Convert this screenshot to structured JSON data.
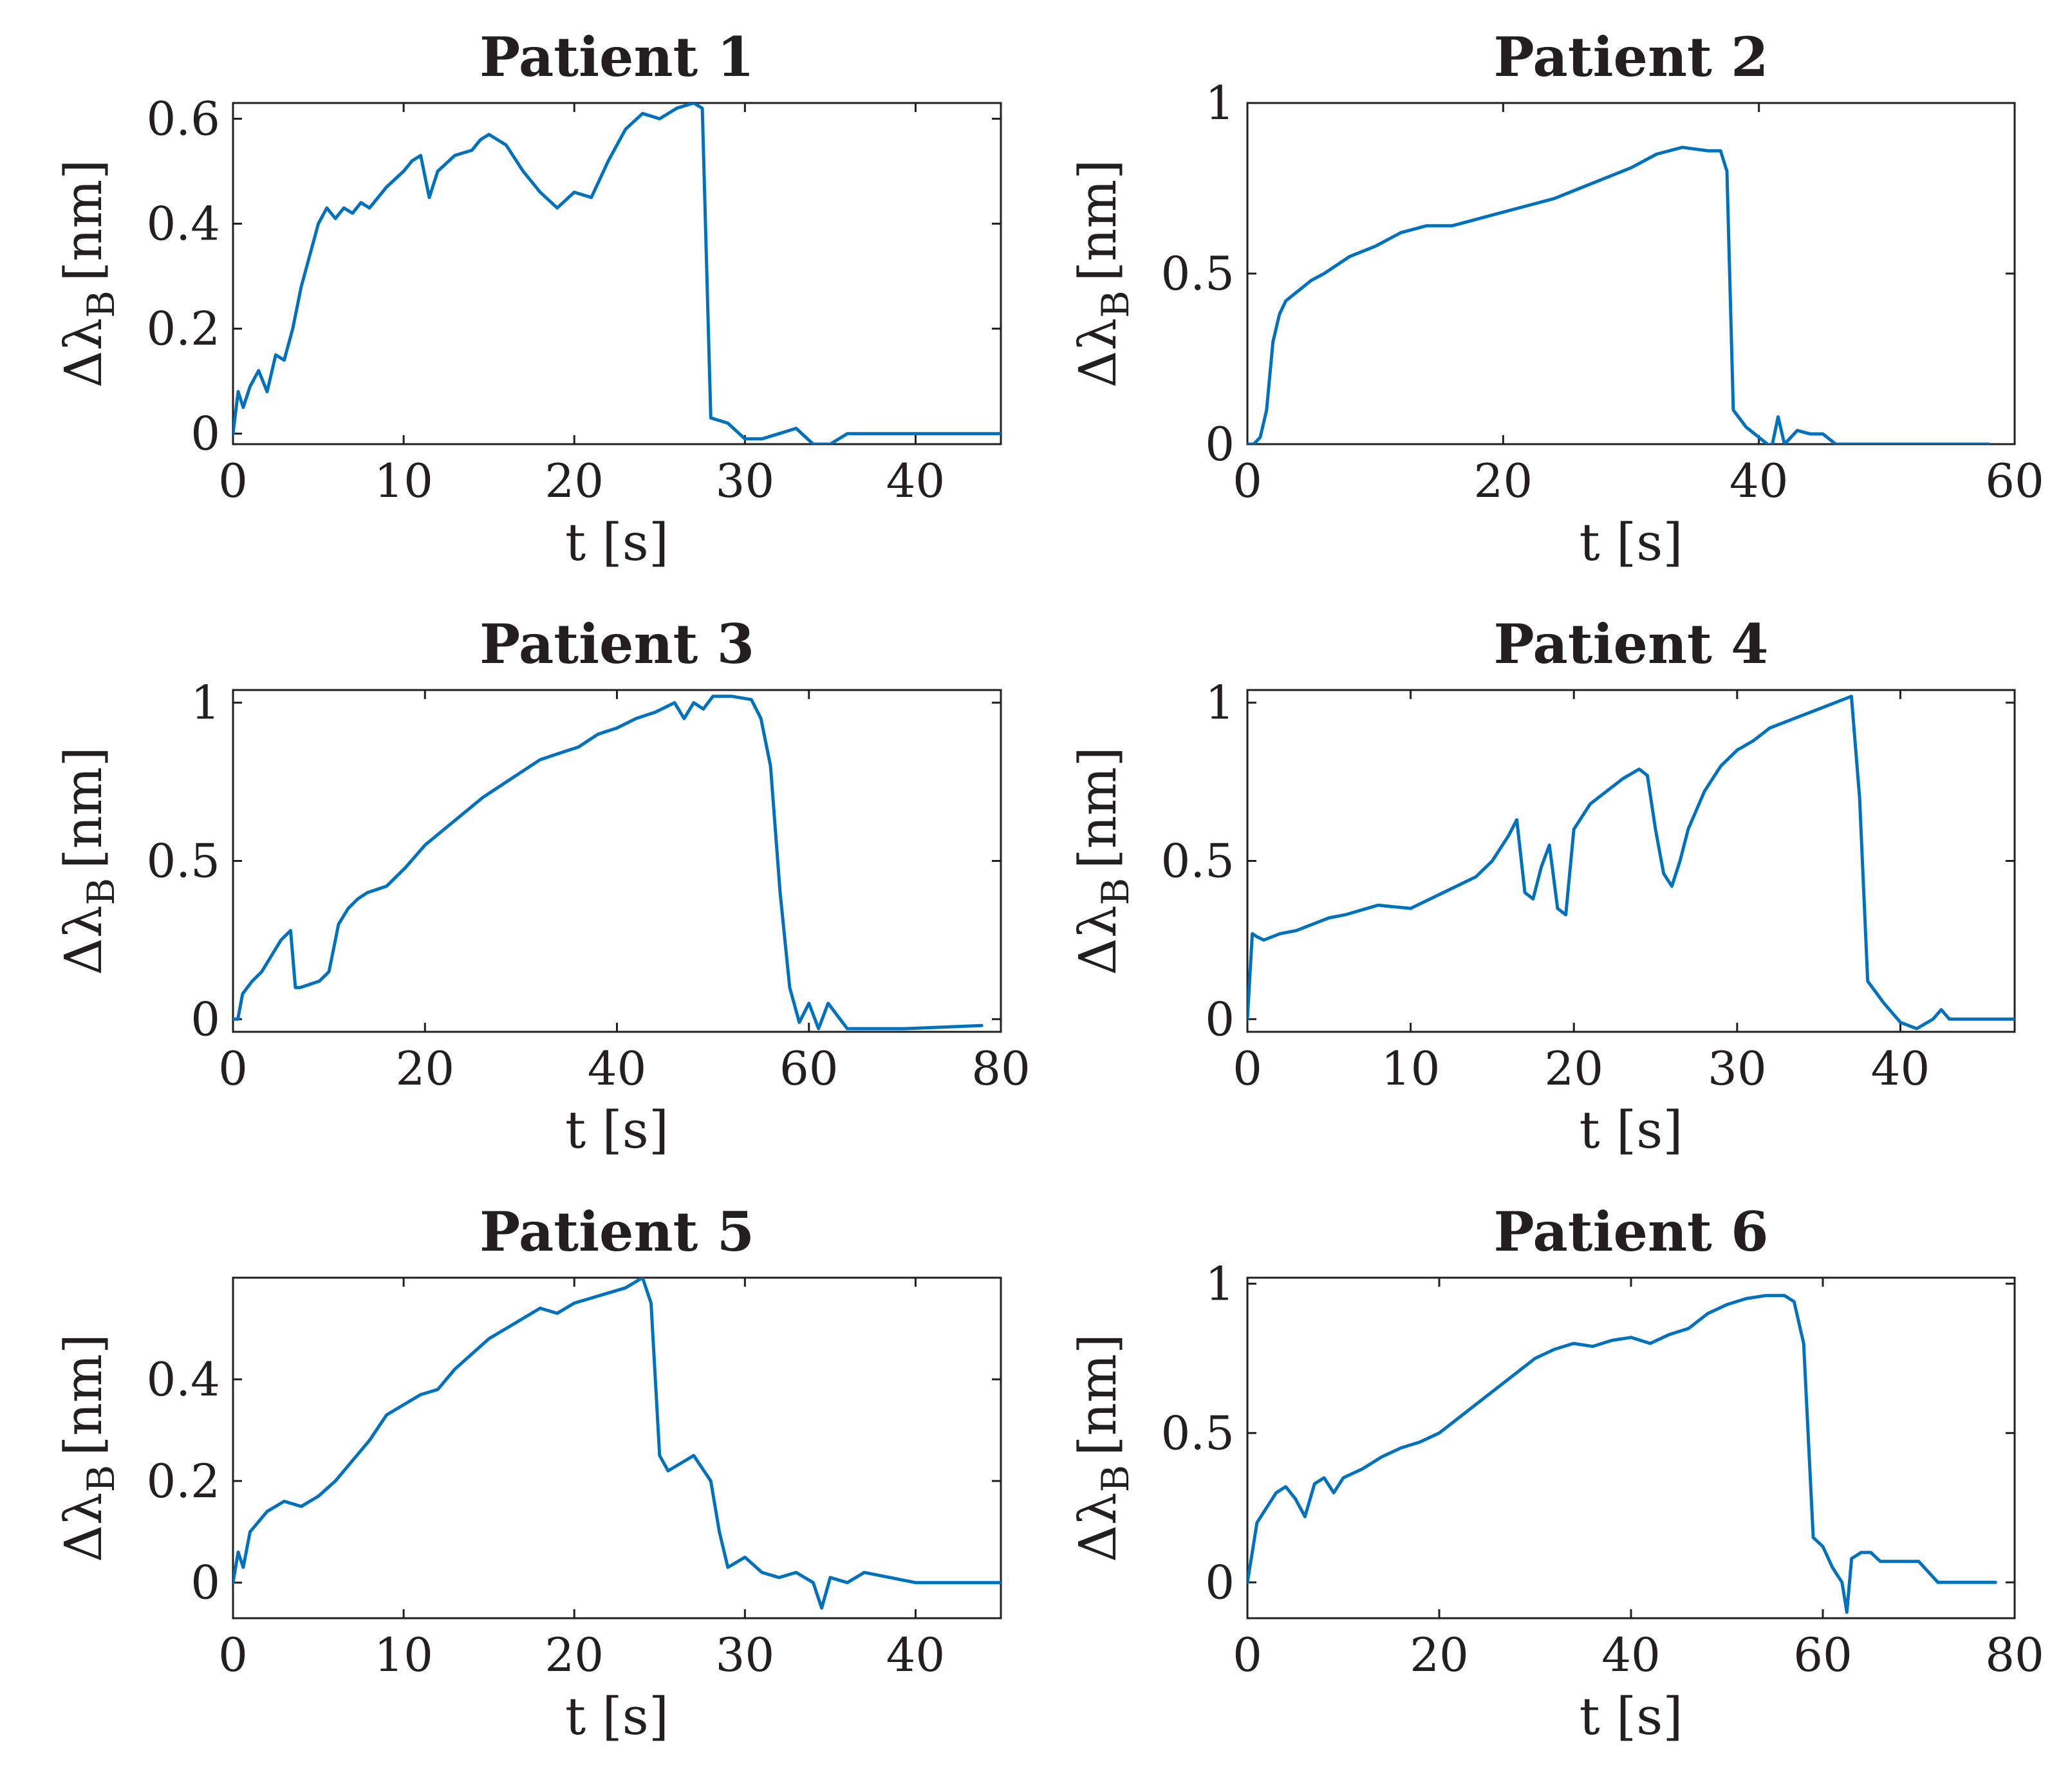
{
  "line_color": "#0072bd",
  "axis_color": "#231f20",
  "chart_data": [
    {
      "type": "line",
      "title": "Patient 1",
      "xlabel": "t [s]",
      "ylabel": "Δλ",
      "ylabel_subscript": "B",
      "ylabel_unit": "[nm]",
      "xlim": [
        0,
        45
      ],
      "ylim": [
        -0.02,
        0.63
      ],
      "xticks": [
        0,
        10,
        20,
        30,
        40
      ],
      "xtick_labels": [
        "0",
        "10",
        "20",
        "30",
        "40"
      ],
      "yticks": [
        0,
        0.2,
        0.4,
        0.6
      ],
      "ytick_labels": [
        "0",
        "0.2",
        "0.4",
        "0.6"
      ],
      "series": [
        {
          "name": "Δλ_B",
          "x": [
            0,
            0.3,
            0.6,
            1,
            1.5,
            2,
            2.5,
            3,
            3.5,
            4,
            4.5,
            5,
            5.5,
            6,
            6.5,
            7,
            7.5,
            8,
            9,
            10,
            10.5,
            11,
            11.5,
            12,
            13,
            14,
            14.5,
            15,
            16,
            17,
            18,
            19,
            20,
            21,
            22,
            23,
            24,
            25,
            26,
            27,
            27.5,
            28,
            29,
            30,
            31,
            32,
            33,
            34,
            35,
            36,
            38,
            40,
            45
          ],
          "y": [
            0,
            0.08,
            0.05,
            0.09,
            0.12,
            0.08,
            0.15,
            0.14,
            0.2,
            0.28,
            0.34,
            0.4,
            0.43,
            0.41,
            0.43,
            0.42,
            0.44,
            0.43,
            0.47,
            0.5,
            0.52,
            0.53,
            0.45,
            0.5,
            0.53,
            0.54,
            0.56,
            0.57,
            0.55,
            0.5,
            0.46,
            0.43,
            0.46,
            0.45,
            0.52,
            0.58,
            0.61,
            0.6,
            0.62,
            0.63,
            0.62,
            0.03,
            0.02,
            -0.01,
            -0.01,
            0.0,
            0.01,
            -0.02,
            -0.02,
            0.0,
            0.0,
            0.0,
            0.0
          ]
        }
      ]
    },
    {
      "type": "line",
      "title": "Patient 2",
      "xlabel": "t [s]",
      "ylabel": "Δλ",
      "ylabel_subscript": "B",
      "ylabel_unit": "[nm]",
      "xlim": [
        0,
        60
      ],
      "ylim": [
        0,
        1
      ],
      "xticks": [
        0,
        20,
        40,
        60
      ],
      "xtick_labels": [
        "0",
        "20",
        "40",
        "60"
      ],
      "yticks": [
        0,
        0.5,
        1
      ],
      "ytick_labels": [
        "0",
        "0.5",
        "1"
      ],
      "series": [
        {
          "name": "Δλ_B",
          "x": [
            0,
            0.5,
            1,
            1.5,
            2,
            2.5,
            3,
            4,
            5,
            6,
            8,
            10,
            12,
            14,
            16,
            18,
            20,
            22,
            24,
            26,
            28,
            30,
            32,
            34,
            36,
            37,
            37.5,
            38,
            39,
            40,
            41,
            41.5,
            42,
            43,
            44,
            45,
            46,
            47,
            50,
            55,
            58
          ],
          "y": [
            0,
            0.0,
            0.02,
            0.1,
            0.3,
            0.38,
            0.42,
            0.45,
            0.48,
            0.5,
            0.55,
            0.58,
            0.62,
            0.64,
            0.64,
            0.66,
            0.68,
            0.7,
            0.72,
            0.75,
            0.78,
            0.81,
            0.85,
            0.87,
            0.86,
            0.86,
            0.8,
            0.1,
            0.05,
            0.02,
            -0.01,
            0.08,
            0.0,
            0.04,
            0.03,
            0.03,
            0.0,
            0.0,
            0.0,
            0.0,
            0.0
          ]
        }
      ]
    },
    {
      "type": "line",
      "title": "Patient 3",
      "xlabel": "t [s]",
      "ylabel": "Δλ",
      "ylabel_subscript": "B",
      "ylabel_unit": "[nm]",
      "xlim": [
        0,
        80
      ],
      "ylim": [
        -0.04,
        1.04
      ],
      "xticks": [
        0,
        20,
        40,
        60,
        80
      ],
      "xtick_labels": [
        "0",
        "20",
        "40",
        "60",
        "80"
      ],
      "yticks": [
        0,
        0.5,
        1
      ],
      "ytick_labels": [
        "0",
        "0.5",
        "1"
      ],
      "series": [
        {
          "name": "Δλ_B",
          "x": [
            0,
            0.5,
            1,
            2,
            3,
            4,
            5,
            6,
            6.5,
            7,
            8,
            9,
            10,
            11,
            12,
            13,
            14,
            16,
            18,
            20,
            22,
            24,
            26,
            28,
            30,
            32,
            34,
            36,
            38,
            40,
            42,
            44,
            46,
            47,
            48,
            49,
            50,
            52,
            54,
            55,
            56,
            57,
            58,
            59,
            60,
            61,
            62,
            64,
            70,
            78
          ],
          "y": [
            0,
            0.0,
            0.08,
            0.12,
            0.15,
            0.2,
            0.25,
            0.28,
            0.1,
            0.1,
            0.11,
            0.12,
            0.15,
            0.3,
            0.35,
            0.38,
            0.4,
            0.42,
            0.48,
            0.55,
            0.6,
            0.65,
            0.7,
            0.74,
            0.78,
            0.82,
            0.84,
            0.86,
            0.9,
            0.92,
            0.95,
            0.97,
            1.0,
            0.95,
            1.0,
            0.98,
            1.02,
            1.02,
            1.01,
            0.95,
            0.8,
            0.4,
            0.1,
            -0.01,
            0.05,
            -0.03,
            0.05,
            -0.03,
            -0.03,
            -0.02
          ]
        }
      ]
    },
    {
      "type": "line",
      "title": "Patient 4",
      "xlabel": "t [s]",
      "ylabel": "Δλ",
      "ylabel_subscript": "B",
      "ylabel_unit": "[nm]",
      "xlim": [
        0,
        47
      ],
      "ylim": [
        -0.04,
        1.04
      ],
      "xticks": [
        0,
        10,
        20,
        30,
        40
      ],
      "xtick_labels": [
        "0",
        "10",
        "20",
        "30",
        "40"
      ],
      "yticks": [
        0,
        0.5,
        1
      ],
      "ytick_labels": [
        "0",
        "0.5",
        "1"
      ],
      "series": [
        {
          "name": "Δλ_B",
          "x": [
            0,
            0.3,
            0.6,
            1,
            2,
            3,
            4,
            5,
            6,
            8,
            10,
            12,
            14,
            15,
            16,
            16.5,
            17,
            17.5,
            18,
            18.5,
            19,
            19.5,
            20,
            21,
            22,
            23,
            24,
            24.5,
            25,
            25.5,
            26,
            26.5,
            27,
            28,
            29,
            30,
            31,
            32,
            33,
            34,
            35,
            36,
            37,
            37.5,
            38,
            39,
            40,
            41,
            42,
            42.5,
            43,
            44,
            47
          ],
          "y": [
            0,
            0.27,
            0.26,
            0.25,
            0.27,
            0.28,
            0.3,
            0.32,
            0.33,
            0.36,
            0.35,
            0.4,
            0.45,
            0.5,
            0.58,
            0.63,
            0.4,
            0.38,
            0.48,
            0.55,
            0.35,
            0.33,
            0.6,
            0.68,
            0.72,
            0.76,
            0.79,
            0.77,
            0.6,
            0.46,
            0.42,
            0.5,
            0.6,
            0.72,
            0.8,
            0.85,
            0.88,
            0.92,
            0.94,
            0.96,
            0.98,
            1.0,
            1.02,
            0.7,
            0.12,
            0.05,
            -0.01,
            -0.03,
            0.0,
            0.03,
            0.0,
            0.0,
            0.0
          ]
        }
      ]
    },
    {
      "type": "line",
      "title": "Patient 5",
      "xlabel": "t [s]",
      "ylabel": "Δλ",
      "ylabel_subscript": "B",
      "ylabel_unit": "[nm]",
      "xlim": [
        0,
        45
      ],
      "ylim": [
        -0.07,
        0.6
      ],
      "xticks": [
        0,
        10,
        20,
        30,
        40
      ],
      "xtick_labels": [
        "0",
        "10",
        "20",
        "30",
        "40"
      ],
      "yticks": [
        0,
        0.2,
        0.4
      ],
      "ytick_labels": [
        "0",
        "0.2",
        "0.4"
      ],
      "series": [
        {
          "name": "Δλ_B",
          "x": [
            0,
            0.3,
            0.6,
            1,
            1.5,
            2,
            3,
            4,
            5,
            6,
            7,
            8,
            9,
            10,
            11,
            12,
            13,
            14,
            15,
            16,
            17,
            18,
            19,
            20,
            21,
            22,
            23,
            24,
            24.5,
            25,
            25.5,
            26,
            27,
            28,
            28.5,
            29,
            30,
            31,
            32,
            33,
            34,
            34.5,
            35,
            36,
            37,
            40,
            45
          ],
          "y": [
            0,
            0.06,
            0.03,
            0.1,
            0.12,
            0.14,
            0.16,
            0.15,
            0.17,
            0.2,
            0.24,
            0.28,
            0.33,
            0.35,
            0.37,
            0.38,
            0.42,
            0.45,
            0.48,
            0.5,
            0.52,
            0.54,
            0.53,
            0.55,
            0.56,
            0.57,
            0.58,
            0.6,
            0.55,
            0.25,
            0.22,
            0.23,
            0.25,
            0.2,
            0.1,
            0.03,
            0.05,
            0.02,
            0.01,
            0.02,
            0.0,
            -0.05,
            0.01,
            0.0,
            0.02,
            0.0,
            0.0
          ]
        }
      ]
    },
    {
      "type": "line",
      "title": "Patient 6",
      "xlabel": "t [s]",
      "ylabel": "Δλ",
      "ylabel_subscript": "B",
      "ylabel_unit": "[nm]",
      "xlim": [
        0,
        80
      ],
      "ylim": [
        -0.12,
        1.02
      ],
      "xticks": [
        0,
        20,
        40,
        60,
        80
      ],
      "xtick_labels": [
        "0",
        "20",
        "40",
        "60",
        "80"
      ],
      "yticks": [
        0,
        0.5,
        1
      ],
      "ytick_labels": [
        "0",
        "0.5",
        "1"
      ],
      "series": [
        {
          "name": "Δλ_B",
          "x": [
            0,
            0.5,
            1,
            2,
            3,
            4,
            5,
            6,
            7,
            8,
            9,
            10,
            12,
            14,
            16,
            18,
            20,
            22,
            24,
            26,
            28,
            30,
            32,
            34,
            36,
            38,
            40,
            42,
            44,
            46,
            48,
            50,
            52,
            54,
            56,
            57,
            58,
            59,
            60,
            61,
            62,
            62.5,
            63,
            64,
            65,
            66,
            68,
            70,
            72,
            78
          ],
          "y": [
            0,
            0.1,
            0.2,
            0.25,
            0.3,
            0.32,
            0.28,
            0.22,
            0.33,
            0.35,
            0.3,
            0.35,
            0.38,
            0.42,
            0.45,
            0.47,
            0.5,
            0.55,
            0.6,
            0.65,
            0.7,
            0.75,
            0.78,
            0.8,
            0.79,
            0.81,
            0.82,
            0.8,
            0.83,
            0.85,
            0.9,
            0.93,
            0.95,
            0.96,
            0.96,
            0.94,
            0.8,
            0.15,
            0.12,
            0.05,
            0.0,
            -0.1,
            0.08,
            0.1,
            0.1,
            0.07,
            0.07,
            0.07,
            0.0,
            0.0
          ]
        }
      ]
    }
  ]
}
